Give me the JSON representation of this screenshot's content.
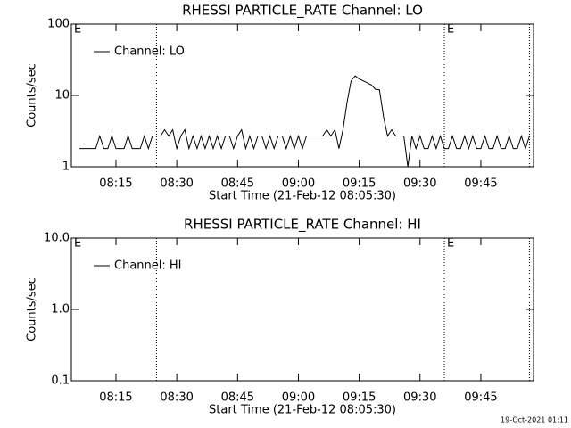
{
  "chart_data": [
    {
      "type": "line",
      "title": "RHESSI PARTICLE_RATE Channel: LO",
      "xlabel": "Start Time (21-Feb-12 08:05:30)",
      "ylabel": "Counts/sec",
      "log_y": true,
      "legend": "upper left",
      "xlim": [
        "08:04",
        "09:58"
      ],
      "xticks": [
        "08:15",
        "08:30",
        "08:45",
        "09:00",
        "09:15",
        "09:30",
        "09:45"
      ],
      "ylim": [
        1,
        100
      ],
      "yticks": [
        1,
        10,
        100
      ],
      "vlines": [
        "08:25",
        "09:36",
        "09:57"
      ],
      "annotations": [
        {
          "text": "E",
          "x": "08:04"
        },
        {
          "text": "E",
          "x": "09:36"
        }
      ],
      "x": [
        "08:06",
        "08:07",
        "08:08",
        "08:09",
        "08:10",
        "08:11",
        "08:12",
        "08:13",
        "08:14",
        "08:15",
        "08:16",
        "08:17",
        "08:18",
        "08:19",
        "08:20",
        "08:21",
        "08:22",
        "08:23",
        "08:24",
        "08:25",
        "08:26",
        "08:27",
        "08:28",
        "08:29",
        "08:30",
        "08:31",
        "08:32",
        "08:33",
        "08:34",
        "08:35",
        "08:36",
        "08:37",
        "08:38",
        "08:39",
        "08:40",
        "08:41",
        "08:42",
        "08:43",
        "08:44",
        "08:45",
        "08:46",
        "08:47",
        "08:48",
        "08:49",
        "08:50",
        "08:51",
        "08:52",
        "08:53",
        "08:54",
        "08:55",
        "08:56",
        "08:57",
        "08:58",
        "08:59",
        "09:00",
        "09:01",
        "09:02",
        "09:03",
        "09:04",
        "09:05",
        "09:06",
        "09:07",
        "09:08",
        "09:09",
        "09:10",
        "09:11",
        "09:12",
        "09:13",
        "09:14",
        "09:15",
        "09:16",
        "09:17",
        "09:18",
        "09:19",
        "09:20",
        "09:21",
        "09:22",
        "09:23",
        "09:24",
        "09:25",
        "09:26",
        "09:27",
        "09:28",
        "09:29",
        "09:30",
        "09:31",
        "09:32",
        "09:33",
        "09:34",
        "09:35",
        "09:36",
        "09:37",
        "09:38",
        "09:39",
        "09:40",
        "09:41",
        "09:42",
        "09:43",
        "09:44",
        "09:45",
        "09:46",
        "09:47",
        "09:48",
        "09:49",
        "09:50",
        "09:51",
        "09:52",
        "09:53",
        "09:54",
        "09:55",
        "09:56",
        "09:57"
      ],
      "series": [
        {
          "name": "Channel: LO",
          "color": "#000000",
          "values": [
            1.8,
            1.8,
            1.8,
            1.8,
            1.8,
            2.7,
            1.8,
            1.8,
            2.7,
            1.8,
            1.8,
            1.8,
            2.7,
            1.8,
            1.8,
            1.8,
            2.7,
            1.8,
            2.7,
            2.7,
            2.7,
            3.3,
            2.7,
            3.3,
            1.8,
            2.7,
            3.3,
            1.8,
            2.7,
            1.8,
            2.7,
            1.8,
            2.7,
            1.8,
            2.7,
            1.8,
            2.7,
            2.7,
            1.8,
            2.7,
            3.3,
            1.8,
            2.7,
            1.8,
            2.7,
            2.7,
            1.8,
            2.7,
            1.8,
            2.7,
            2.7,
            1.8,
            2.7,
            1.8,
            2.7,
            1.8,
            2.7,
            2.7,
            2.7,
            2.7,
            2.7,
            3.3,
            2.7,
            3.3,
            1.8,
            3.3,
            8,
            16,
            18.8,
            17,
            16,
            15,
            14,
            12.2,
            12,
            5,
            2.7,
            3.3,
            2.7,
            2.7,
            2.7,
            1,
            2.7,
            1.8,
            2.7,
            1.8,
            1.8,
            2.7,
            1.8,
            2.7,
            1.8,
            1.8,
            2.7,
            1.8,
            1.8,
            2.7,
            1.8,
            2.7,
            1.8,
            1.8,
            2.7,
            1.8,
            1.8,
            2.7,
            1.8,
            1.8,
            2.7,
            1.8,
            1.8,
            2.7,
            1.8,
            2.7
          ]
        }
      ]
    },
    {
      "type": "line",
      "title": "RHESSI PARTICLE_RATE Channel: HI",
      "xlabel": "Start Time (21-Feb-12 08:05:30)",
      "ylabel": "Counts/sec",
      "log_y": true,
      "legend": "upper left",
      "xlim": [
        "08:04",
        "09:58"
      ],
      "xticks": [
        "08:15",
        "08:30",
        "08:45",
        "09:00",
        "09:15",
        "09:30",
        "09:45"
      ],
      "ylim": [
        0.1,
        10
      ],
      "yticks": [
        0.1,
        {
          "value": 1,
          "label": "1.0"
        },
        {
          "value": 10,
          "label": "10.0"
        }
      ],
      "vlines": [
        "08:25",
        "09:36",
        "09:57"
      ],
      "annotations": [
        {
          "text": "E",
          "x": "08:04"
        },
        {
          "text": "E",
          "x": "09:36"
        }
      ],
      "series": [
        {
          "name": "Channel: HI",
          "color": "#000000",
          "values": []
        }
      ]
    }
  ],
  "footer": "19-Oct-2021 01:11"
}
